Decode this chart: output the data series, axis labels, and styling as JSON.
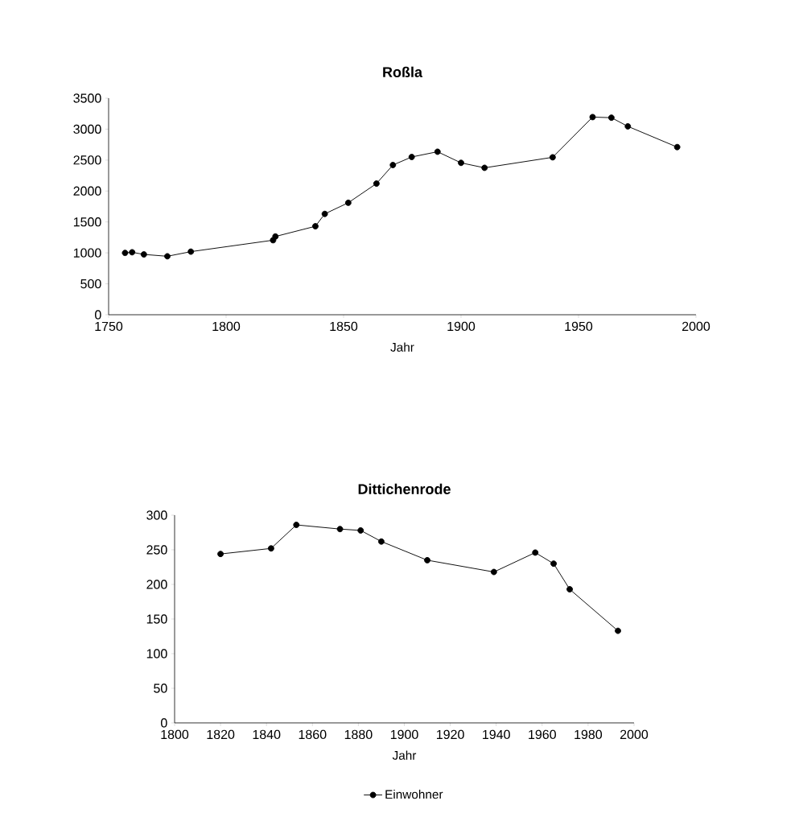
{
  "chart_data": [
    {
      "type": "line",
      "title": "Roßla",
      "xlabel": "Jahr",
      "marker": "circle",
      "line_style": "solid",
      "grid": false,
      "legend": false,
      "xlim": [
        1750,
        2000
      ],
      "xticks": [
        1750,
        1800,
        1850,
        1900,
        1950,
        2000
      ],
      "ylim": [
        0,
        3500
      ],
      "yticks": [
        0,
        500,
        1000,
        1500,
        2000,
        2500,
        3000,
        3500
      ],
      "x": [
        1757,
        1760,
        1765,
        1775,
        1785,
        1820,
        1821,
        1838,
        1842,
        1852,
        1864,
        1871,
        1879,
        1890,
        1900,
        1910,
        1939,
        1956,
        1964,
        1971,
        1992
      ],
      "series": [
        {
          "color": "#000000",
          "values": [
            1000,
            1010,
            975,
            945,
            1020,
            1205,
            1265,
            1430,
            1630,
            1810,
            2120,
            2420,
            2550,
            2635,
            2455,
            2375,
            2545,
            3195,
            3185,
            3045,
            2710
          ]
        }
      ]
    },
    {
      "type": "line",
      "title": "Dittichenrode",
      "xlabel": "Jahr",
      "marker": "circle",
      "line_style": "solid",
      "grid": false,
      "legend": "bottom",
      "xlim": [
        1800,
        2000
      ],
      "xticks": [
        1800,
        1820,
        1840,
        1860,
        1880,
        1900,
        1920,
        1940,
        1960,
        1980,
        2000
      ],
      "ylim": [
        0,
        300
      ],
      "yticks": [
        0,
        50,
        100,
        150,
        200,
        250,
        300
      ],
      "x": [
        1820,
        1842,
        1853,
        1872,
        1881,
        1890,
        1910,
        1939,
        1957,
        1965,
        1972,
        1993
      ],
      "series": [
        {
          "name": "Einwohner",
          "color": "#000000",
          "values": [
            244,
            252,
            286,
            280,
            278,
            262,
            235,
            218,
            246,
            230,
            193,
            133
          ]
        }
      ]
    }
  ]
}
